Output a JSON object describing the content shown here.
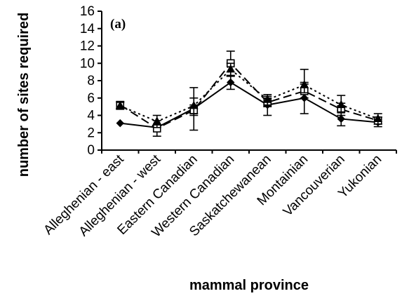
{
  "chart_data": {
    "type": "line",
    "panel_label": "(a)",
    "xlabel": "mammal province",
    "ylabel": "number of sites required",
    "ylim": [
      0,
      16
    ],
    "yticks": [
      "0",
      "2",
      "4",
      "6",
      "8",
      "10",
      "12",
      "14",
      "16"
    ],
    "categories": [
      "Alleghenian - east",
      "Alleghenian - west",
      "Eastern Canadian",
      "Western Canadian",
      "Saskatchewanean",
      "Montainian",
      "Vancouverian",
      "Yukonian"
    ],
    "grid": false,
    "legend": "none",
    "series": [
      {
        "style": "solid",
        "marker": "diamond-filled",
        "values": [
          3.1,
          2.6,
          4.8,
          7.8,
          5.2,
          6.0,
          3.6,
          3.2
        ],
        "err_low": [
          3.1,
          2.6,
          2.3,
          7.0,
          4.0,
          4.2,
          2.8,
          2.7
        ],
        "err_high": [
          3.1,
          2.6,
          7.2,
          8.6,
          6.2,
          7.8,
          4.6,
          3.8
        ]
      },
      {
        "style": "dashed",
        "marker": "square-open",
        "values": [
          5.2,
          2.5,
          4.6,
          10.0,
          5.5,
          6.8,
          4.7,
          3.4
        ],
        "err_low": [
          4.8,
          1.6,
          4.0,
          8.5,
          5.0,
          6.0,
          4.0,
          3.0
        ],
        "err_high": [
          5.6,
          3.4,
          5.2,
          11.4,
          6.0,
          7.6,
          5.4,
          3.8
        ]
      },
      {
        "style": "dotted",
        "marker": "triangle-filled",
        "values": [
          5.1,
          3.3,
          5.1,
          9.3,
          5.8,
          7.5,
          5.2,
          3.6
        ],
        "err_low": [
          4.7,
          2.6,
          4.2,
          8.6,
          5.2,
          6.6,
          4.4,
          3.0
        ],
        "err_high": [
          5.5,
          4.0,
          6.0,
          10.0,
          6.4,
          9.3,
          6.3,
          4.2
        ]
      }
    ]
  }
}
